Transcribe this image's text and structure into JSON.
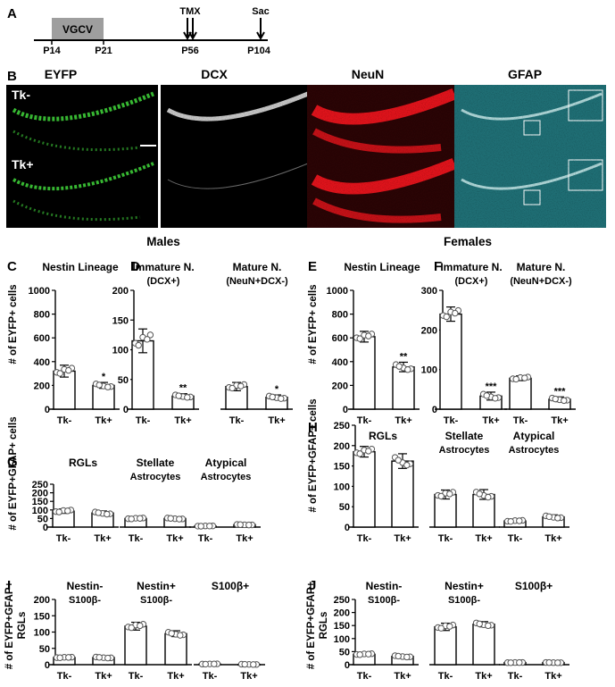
{
  "timeline": {
    "panel_label": "A",
    "vgcv_label": "VGCV",
    "ticks": [
      "P14",
      "P21",
      "P56",
      "P104"
    ],
    "events": [
      "TMX",
      "Sac"
    ]
  },
  "images": {
    "panel_label": "B",
    "channels": [
      "EYFP",
      "DCX",
      "NeuN",
      "GFAP"
    ],
    "rows": [
      "Tk-",
      "Tk+"
    ],
    "channel_colors": [
      "#3fd13a",
      "#d9d9d9",
      "#e8141c",
      "#39c8d4"
    ]
  },
  "headers": {
    "males": "Males",
    "females": "Females"
  },
  "y_labels": {
    "eyfp": "# of EYFP+ cells",
    "eyfp_gfap": "# of EYFP+GFAP+ cells",
    "rgl_line1": "# of EYFP+GFAP+",
    "rgl_line2": "RGLs"
  },
  "chart_data": [
    {
      "id": "C",
      "type": "bar",
      "label": "C",
      "ylim": [
        0,
        1000
      ],
      "yticks": [
        0,
        200,
        400,
        600,
        800,
        1000
      ],
      "groups": [
        {
          "title": [
            "Nestin Lineage"
          ],
          "categories": [
            "Tk-",
            "Tk+"
          ],
          "values": [
            320,
            200
          ],
          "errors": [
            50,
            25
          ],
          "sig": [
            "",
            "*"
          ]
        }
      ]
    },
    {
      "id": "D",
      "type": "bar",
      "label": "D",
      "ylim": [
        0,
        200
      ],
      "yticks": [
        0,
        50,
        100,
        150,
        200
      ],
      "groups": [
        {
          "title": [
            "Immature N.",
            "(DCX+)"
          ],
          "categories": [
            "Tk-",
            "Tk+"
          ],
          "values": [
            115,
            22
          ],
          "errors": [
            20,
            4
          ],
          "sig": [
            "",
            "**"
          ]
        },
        {
          "title": [
            "Mature N.",
            "(NeuN+DCX-)"
          ],
          "categories": [
            "Tk-",
            "Tk+"
          ],
          "values": [
            38,
            20
          ],
          "errors": [
            7,
            4
          ],
          "sig": [
            "",
            "*"
          ]
        }
      ]
    },
    {
      "id": "E",
      "type": "bar",
      "label": "E",
      "ylim": [
        0,
        1000
      ],
      "yticks": [
        0,
        200,
        400,
        600,
        800,
        1000
      ],
      "groups": [
        {
          "title": [
            "Nestin Lineage"
          ],
          "categories": [
            "Tk-",
            "Tk+"
          ],
          "values": [
            610,
            355
          ],
          "errors": [
            45,
            40
          ],
          "sig": [
            "",
            "**"
          ]
        }
      ]
    },
    {
      "id": "F",
      "type": "bar",
      "label": "F",
      "ylim": [
        0,
        300
      ],
      "yticks": [
        0,
        100,
        200,
        300
      ],
      "groups": [
        {
          "title": [
            "Immature N.",
            "(DCX+)"
          ],
          "categories": [
            "Tk-",
            "Tk+"
          ],
          "values": [
            240,
            33
          ],
          "errors": [
            18,
            10
          ],
          "sig": [
            "",
            "***"
          ]
        },
        {
          "title": [
            "Mature N.",
            "(NeuN+DCX-)"
          ],
          "categories": [
            "Tk-",
            "Tk+"
          ],
          "values": [
            78,
            25
          ],
          "errors": [
            6,
            6
          ],
          "sig": [
            "",
            "***"
          ]
        }
      ]
    },
    {
      "id": "G",
      "type": "bar",
      "label": "G",
      "ylim": [
        0,
        250
      ],
      "yticks": [
        0,
        50,
        100,
        150,
        200,
        250
      ],
      "groups": [
        {
          "title": [
            "RGLs"
          ],
          "categories": [
            "Tk-",
            "Tk+"
          ],
          "values": [
            93,
            82
          ],
          "errors": [
            13,
            12
          ],
          "sig": [
            "",
            ""
          ]
        },
        {
          "title": [
            "Stellate",
            "Astrocytes"
          ],
          "categories": [
            "Tk-",
            "Tk+"
          ],
          "values": [
            50,
            50
          ],
          "errors": [
            6,
            6
          ],
          "sig": [
            "",
            ""
          ]
        },
        {
          "title": [
            "Atypical",
            "Astrocytes"
          ],
          "categories": [
            "Tk-",
            "Tk+"
          ],
          "values": [
            6,
            14
          ],
          "errors": [
            2,
            3
          ],
          "sig": [
            "",
            ""
          ]
        }
      ]
    },
    {
      "id": "H",
      "type": "bar",
      "label": "H",
      "ylim": [
        0,
        250
      ],
      "yticks": [
        0,
        50,
        100,
        150,
        200,
        250
      ],
      "groups": [
        {
          "title": [
            "RGLs"
          ],
          "categories": [
            "Tk-",
            "Tk+"
          ],
          "values": [
            185,
            162
          ],
          "errors": [
            13,
            18
          ],
          "sig": [
            "",
            ""
          ]
        },
        {
          "title": [
            "Stellate",
            "Astrocytes"
          ],
          "categories": [
            "Tk-",
            "Tk+"
          ],
          "values": [
            80,
            80
          ],
          "errors": [
            11,
            12
          ],
          "sig": [
            "",
            ""
          ]
        },
        {
          "title": [
            "Atypical",
            "Astrocytes"
          ],
          "categories": [
            "Tk-",
            "Tk+"
          ],
          "values": [
            15,
            25
          ],
          "errors": [
            3,
            5
          ],
          "sig": [
            "",
            ""
          ]
        }
      ]
    },
    {
      "id": "I",
      "type": "bar",
      "label": "I",
      "ylim": [
        0,
        200
      ],
      "yticks": [
        0,
        50,
        100,
        150,
        200
      ],
      "groups": [
        {
          "title": [
            "Nestin-",
            "S100β-"
          ],
          "categories": [
            "Tk-",
            "Tk+"
          ],
          "values": [
            22,
            22
          ],
          "errors": [
            2,
            3
          ],
          "sig": [
            "",
            ""
          ]
        },
        {
          "title": [
            "Nestin+",
            "S100β-"
          ],
          "categories": [
            "Tk-",
            "Tk+"
          ],
          "values": [
            118,
            95
          ],
          "errors": [
            12,
            9
          ],
          "sig": [
            "",
            ""
          ]
        },
        {
          "title": [
            "S100β+"
          ],
          "categories": [
            "Tk-",
            "Tk+"
          ],
          "values": [
            2,
            1
          ],
          "errors": [
            1,
            1
          ],
          "sig": [
            "",
            ""
          ]
        }
      ]
    },
    {
      "id": "J",
      "type": "bar",
      "label": "J",
      "ylim": [
        0,
        250
      ],
      "yticks": [
        0,
        50,
        100,
        150,
        200,
        250
      ],
      "groups": [
        {
          "title": [
            "Nestin-",
            "S100β-"
          ],
          "categories": [
            "Tk-",
            "Tk+"
          ],
          "values": [
            40,
            32
          ],
          "errors": [
            4,
            5
          ],
          "sig": [
            "",
            ""
          ]
        },
        {
          "title": [
            "Nestin+",
            "S100β-"
          ],
          "categories": [
            "Tk-",
            "Tk+"
          ],
          "values": [
            145,
            155
          ],
          "errors": [
            14,
            10
          ],
          "sig": [
            "",
            ""
          ]
        },
        {
          "title": [
            "S100β+"
          ],
          "categories": [
            "Tk-",
            "Tk+"
          ],
          "values": [
            8,
            8
          ],
          "errors": [
            1,
            1
          ],
          "sig": [
            "",
            ""
          ]
        }
      ]
    }
  ]
}
